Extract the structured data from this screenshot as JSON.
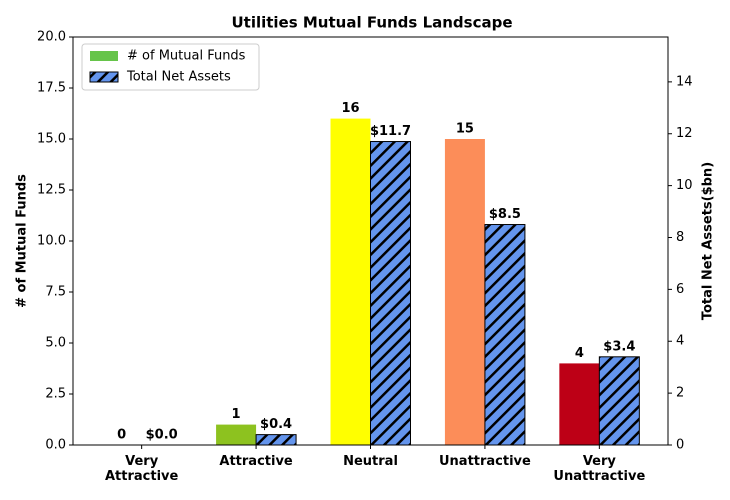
{
  "chart_data": {
    "type": "bar",
    "title": "Utilities Mutual Funds Landscape",
    "categories": [
      "Very\nAttractive",
      "Attractive",
      "Neutral",
      "Unattractive",
      "Very\nUnattractive"
    ],
    "series": [
      {
        "name": "# of Mutual Funds",
        "color": "#66c44a",
        "colors": [
          "#1a9850",
          "#8dc21f",
          "#ffff00",
          "#fc8d59",
          "#bd0016"
        ],
        "values": [
          0,
          1,
          16,
          15,
          4
        ]
      },
      {
        "name": "Total Net Assets",
        "color": "#6495ed",
        "hatch": "//",
        "axis": "y2",
        "values": [
          0.0,
          0.4,
          11.7,
          8.5,
          3.4
        ],
        "value_labels": [
          "$0.0",
          "$0.4",
          "$11.7",
          "$8.5",
          "$3.4"
        ]
      }
    ],
    "ylabel": "# of Mutual Funds",
    "y2label": "Total Net Assets($bn)",
    "ylim": [
      0,
      20
    ],
    "yticks": [
      {
        "value": 0,
        "label": "0.0"
      },
      2.5,
      {
        "value": 5,
        "label": "5.0"
      },
      7.5,
      {
        "value": 10,
        "label": "10.0"
      },
      12.5,
      {
        "value": 15,
        "label": "15.0"
      },
      17.5,
      {
        "value": 20,
        "label": "20.0"
      }
    ],
    "y2lim": [
      0,
      15.73
    ],
    "y2ticks": [
      0,
      2,
      4,
      6,
      8,
      10,
      12,
      14
    ],
    "legend": "upper left"
  }
}
